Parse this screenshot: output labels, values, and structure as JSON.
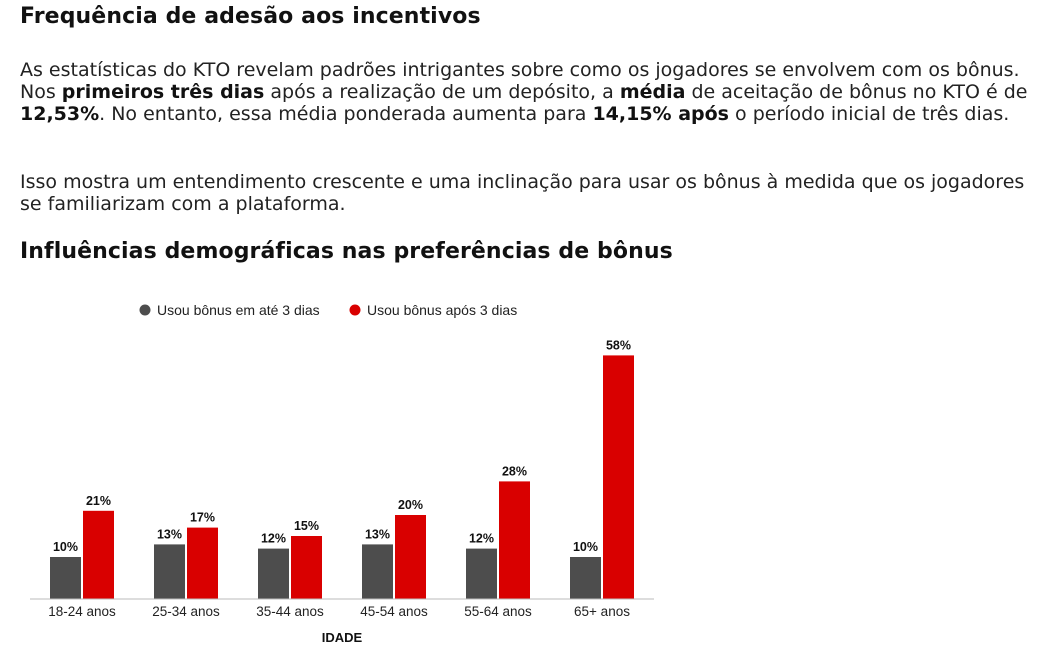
{
  "section1": {
    "title": "Frequência de adesão aos incentivos",
    "paragraph1": {
      "t1": "As estatísticas do KTO revelam padrões intrigantes sobre como os jogadores se envolvem com os bônus. Nos ",
      "b1": "primeiros três dias",
      "t2": " após a realização de um depósito, a ",
      "b2": "média",
      "t3": " de aceitação de bônus no KTO é de ",
      "b3": "12,53%",
      "t4": ". No entanto, essa média ponderada aumenta para ",
      "b4": "14,15% após",
      "t5": " o período inicial de três dias."
    },
    "paragraph2": "Isso mostra um entendimento crescente e uma inclinação para usar os bônus à medida que os jogadores se familiarizam com a plataforma."
  },
  "section2": {
    "title": "Influências demográficas nas preferências de bônus"
  },
  "chart_data": {
    "type": "bar",
    "title": "",
    "xlabel": "IDADE",
    "ylabel": "",
    "ylim": [
      0,
      60
    ],
    "grid": false,
    "legend_position": "top-center",
    "categories": [
      "18-24 anos",
      "25-34 anos",
      "35-44 anos",
      "45-54 anos",
      "55-64 anos",
      "65+ anos"
    ],
    "series": [
      {
        "name": "Usou bônus em até 3 dias",
        "color": "#4d4d4d",
        "values": [
          10,
          13,
          12,
          13,
          12,
          10
        ],
        "labels": [
          "10%",
          "13%",
          "12%",
          "13%",
          "12%",
          "10%"
        ]
      },
      {
        "name": "Usou bônus após 3 dias",
        "color": "#d90000",
        "values": [
          21,
          17,
          15,
          20,
          28,
          58
        ],
        "labels": [
          "21%",
          "17%",
          "15%",
          "20%",
          "28%",
          "58%"
        ]
      }
    ]
  }
}
